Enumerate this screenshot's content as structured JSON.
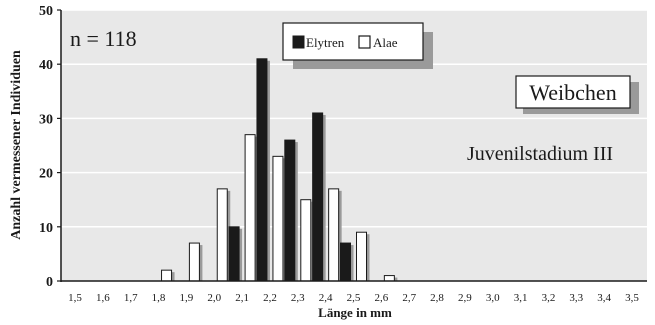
{
  "chart_data": {
    "type": "bar",
    "xlabel": "Länge in mm",
    "ylabel": "Anzahl vermessener Individuen",
    "ylim": [
      0,
      50
    ],
    "yticks": [
      0,
      10,
      20,
      30,
      40,
      50
    ],
    "grid": true,
    "legend_position": "top-center",
    "categories": [
      "1,5",
      "1,6",
      "1,7",
      "1,8",
      "1,9",
      "2,0",
      "2,1",
      "2,2",
      "2,3",
      "2,4",
      "2,5",
      "2,6",
      "2,7",
      "2,8",
      "2,9",
      "3,0",
      "3,1",
      "3,2",
      "3,3",
      "3,4",
      "3,5"
    ],
    "series": [
      {
        "name": "Elytren",
        "color": "#1a1a1a",
        "values": [
          0,
          0,
          0,
          0,
          0,
          0,
          10,
          41,
          26,
          31,
          7,
          0,
          0,
          0,
          0,
          0,
          0,
          0,
          0,
          0,
          0
        ]
      },
      {
        "name": "Alae",
        "color": "#ffffff",
        "values": [
          0,
          0,
          0,
          2,
          7,
          17,
          27,
          23,
          15,
          17,
          9,
          1,
          0,
          0,
          0,
          0,
          0,
          0,
          0,
          0,
          0
        ]
      }
    ],
    "annotations": {
      "sample_size": "n = 118",
      "sex": "Weibchen",
      "stage": "Juvenilstadium III"
    }
  },
  "colors": {
    "background": "#e8e8e8",
    "grid": "#ffffff",
    "shadow": "#9a9a9a",
    "ink": "#1a1a1a"
  }
}
